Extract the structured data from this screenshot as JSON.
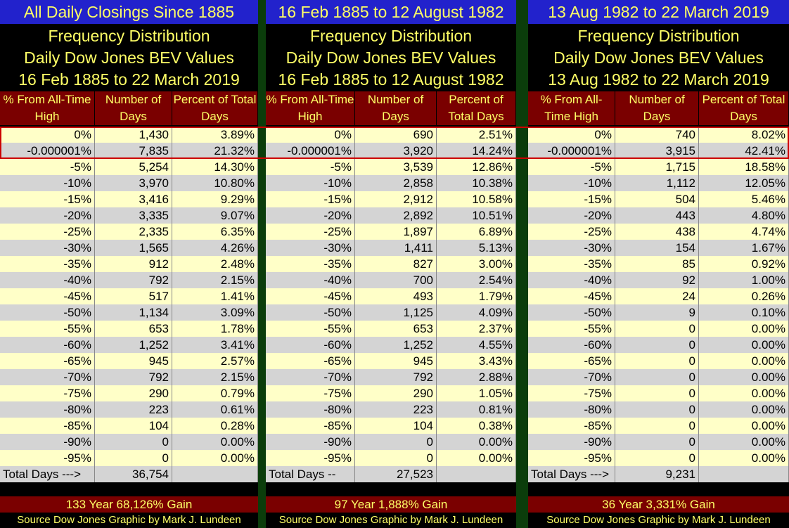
{
  "panels": [
    {
      "title": "All Daily Closings Since 1885",
      "sub1": "Frequency Distribution",
      "sub2": "Daily Dow Jones BEV Values",
      "sub3": "16 Feb 1885 to 22 March 2019",
      "headers": [
        "% From All-Time High",
        "Number of Days",
        "Percent of Total Days"
      ],
      "rows": [
        [
          "0%",
          "1,430",
          "3.89%"
        ],
        [
          "-0.000001%",
          "7,835",
          "21.32%"
        ],
        [
          "-5%",
          "5,254",
          "14.30%"
        ],
        [
          "-10%",
          "3,970",
          "10.80%"
        ],
        [
          "-15%",
          "3,416",
          "9.29%"
        ],
        [
          "-20%",
          "3,335",
          "9.07%"
        ],
        [
          "-25%",
          "2,335",
          "6.35%"
        ],
        [
          "-30%",
          "1,565",
          "4.26%"
        ],
        [
          "-35%",
          "912",
          "2.48%"
        ],
        [
          "-40%",
          "792",
          "2.15%"
        ],
        [
          "-45%",
          "517",
          "1.41%"
        ],
        [
          "-50%",
          "1,134",
          "3.09%"
        ],
        [
          "-55%",
          "653",
          "1.78%"
        ],
        [
          "-60%",
          "1,252",
          "3.41%"
        ],
        [
          "-65%",
          "945",
          "2.57%"
        ],
        [
          "-70%",
          "792",
          "2.15%"
        ],
        [
          "-75%",
          "290",
          "0.79%"
        ],
        [
          "-80%",
          "223",
          "0.61%"
        ],
        [
          "-85%",
          "104",
          "0.28%"
        ],
        [
          "-90%",
          "0",
          "0.00%"
        ],
        [
          "-95%",
          "0",
          "0.00%"
        ]
      ],
      "total_label": "Total Days --->",
      "total_value": "36,754",
      "gain": "133 Year 68,126% Gain",
      "source": "Source Dow Jones   Graphic by Mark J. Lundeen"
    },
    {
      "title": "16 Feb 1885 to 12 August 1982",
      "sub1": "Frequency Distribution",
      "sub2": "Daily Dow Jones BEV Values",
      "sub3": "16 Feb 1885 to 12 August 1982",
      "headers": [
        "% From All-Time High",
        "Number of Days",
        "Percent of Total Days"
      ],
      "rows": [
        [
          "0%",
          "690",
          "2.51%"
        ],
        [
          "-0.000001%",
          "3,920",
          "14.24%"
        ],
        [
          "-5%",
          "3,539",
          "12.86%"
        ],
        [
          "-10%",
          "2,858",
          "10.38%"
        ],
        [
          "-15%",
          "2,912",
          "10.58%"
        ],
        [
          "-20%",
          "2,892",
          "10.51%"
        ],
        [
          "-25%",
          "1,897",
          "6.89%"
        ],
        [
          "-30%",
          "1,411",
          "5.13%"
        ],
        [
          "-35%",
          "827",
          "3.00%"
        ],
        [
          "-40%",
          "700",
          "2.54%"
        ],
        [
          "-45%",
          "493",
          "1.79%"
        ],
        [
          "-50%",
          "1,125",
          "4.09%"
        ],
        [
          "-55%",
          "653",
          "2.37%"
        ],
        [
          "-60%",
          "1,252",
          "4.55%"
        ],
        [
          "-65%",
          "945",
          "3.43%"
        ],
        [
          "-70%",
          "792",
          "2.88%"
        ],
        [
          "-75%",
          "290",
          "1.05%"
        ],
        [
          "-80%",
          "223",
          "0.81%"
        ],
        [
          "-85%",
          "104",
          "0.38%"
        ],
        [
          "-90%",
          "0",
          "0.00%"
        ],
        [
          "-95%",
          "0",
          "0.00%"
        ]
      ],
      "total_label": "Total Days --",
      "total_value": "27,523",
      "gain": "97 Year 1,888% Gain",
      "source": "Source Dow Jones   Graphic by Mark J. Lundeen"
    },
    {
      "title": "13 Aug 1982 to 22 March 2019",
      "sub1": "Frequency Distribution",
      "sub2": "Daily Dow Jones BEV Values",
      "sub3": "13 Aug 1982 to 22 March 2019",
      "headers": [
        "% From All-Time High",
        "Number of Days",
        "Percent of Total Days"
      ],
      "rows": [
        [
          "0%",
          "740",
          "8.02%"
        ],
        [
          "-0.000001%",
          "3,915",
          "42.41%"
        ],
        [
          "-5%",
          "1,715",
          "18.58%"
        ],
        [
          "-10%",
          "1,112",
          "12.05%"
        ],
        [
          "-15%",
          "504",
          "5.46%"
        ],
        [
          "-20%",
          "443",
          "4.80%"
        ],
        [
          "-25%",
          "438",
          "4.74%"
        ],
        [
          "-30%",
          "154",
          "1.67%"
        ],
        [
          "-35%",
          "85",
          "0.92%"
        ],
        [
          "-40%",
          "92",
          "1.00%"
        ],
        [
          "-45%",
          "24",
          "0.26%"
        ],
        [
          "-50%",
          "9",
          "0.10%"
        ],
        [
          "-55%",
          "0",
          "0.00%"
        ],
        [
          "-60%",
          "0",
          "0.00%"
        ],
        [
          "-65%",
          "0",
          "0.00%"
        ],
        [
          "-70%",
          "0",
          "0.00%"
        ],
        [
          "-75%",
          "0",
          "0.00%"
        ],
        [
          "-80%",
          "0",
          "0.00%"
        ],
        [
          "-85%",
          "0",
          "0.00%"
        ],
        [
          "-90%",
          "0",
          "0.00%"
        ],
        [
          "-95%",
          "0",
          "0.00%"
        ]
      ],
      "total_label": "Total Days --->",
      "total_value": "9,231",
      "gain": "36 Year 3,331% Gain",
      "source": "Source Dow Jones   Graphic by Mark J. Lundeen"
    }
  ],
  "colors": {
    "header_bg": "#7a0000",
    "title_bg": "#2222cc",
    "text_yellow": "#ffff66",
    "row_light": "#ffffc8",
    "row_gray": "#d4d4d4",
    "divider": "#0b3d0b",
    "highlight": "#cc0000"
  }
}
